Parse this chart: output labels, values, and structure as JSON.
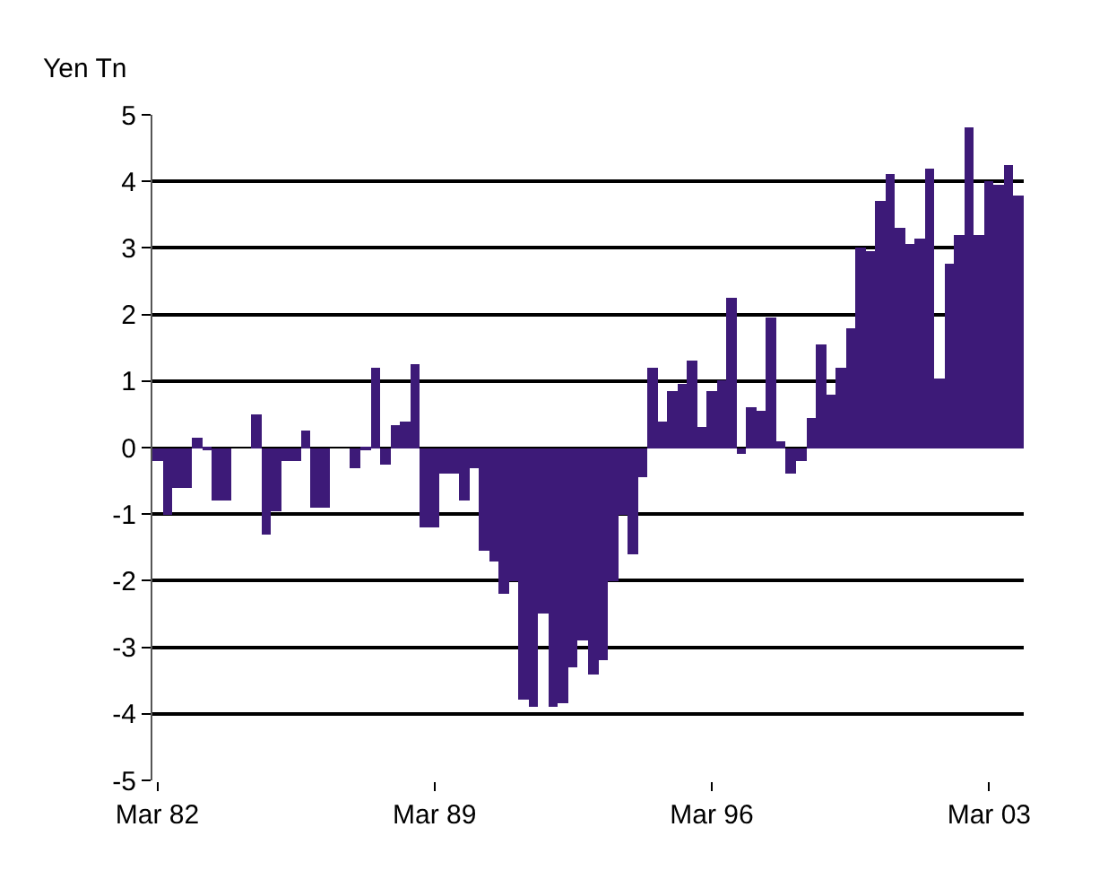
{
  "chart_data": {
    "type": "bar",
    "ylabel": "Yen Tn",
    "categories": [
      "Mar 82",
      null,
      null,
      null,
      null,
      null,
      null,
      null,
      null,
      null,
      null,
      null,
      null,
      null,
      null,
      null,
      null,
      null,
      null,
      null,
      null,
      null,
      null,
      null,
      null,
      null,
      null,
      null,
      "Mar 89",
      null,
      null,
      null,
      null,
      null,
      null,
      null,
      null,
      null,
      null,
      null,
      null,
      null,
      null,
      null,
      null,
      null,
      null,
      null,
      null,
      null,
      null,
      null,
      null,
      null,
      null,
      null,
      "Mar 96",
      null,
      null,
      null,
      null,
      null,
      null,
      null,
      null,
      null,
      null,
      null,
      null,
      null,
      null,
      null,
      null,
      null,
      null,
      null,
      null,
      null,
      null,
      null,
      null,
      null,
      null,
      null,
      "Mar 03",
      null,
      null,
      null
    ],
    "values": [
      -0.2,
      -1.0,
      -0.6,
      -0.6,
      0.15,
      -0.05,
      -0.8,
      -0.8,
      0,
      0,
      0.5,
      -1.3,
      -0.95,
      -0.2,
      -0.2,
      0.25,
      -0.9,
      -0.9,
      0,
      0,
      -0.3,
      -0.05,
      1.2,
      -0.25,
      0.35,
      0.4,
      1.25,
      -1.2,
      -1.2,
      -0.4,
      -0.4,
      -0.8,
      -0.3,
      -1.55,
      -1.7,
      -2.2,
      -2.0,
      -3.8,
      -3.9,
      -2.5,
      -3.9,
      -3.85,
      -3.3,
      -2.9,
      -3.4,
      -3.2,
      -2.0,
      -1.0,
      -1.6,
      -0.45,
      1.2,
      0.4,
      0.85,
      0.95,
      1.3,
      0.3,
      0.85,
      1.0,
      2.25,
      -0.1,
      0.6,
      0.55,
      1.95,
      0.1,
      -0.4,
      -0.2,
      0.45,
      1.55,
      0.8,
      1.2,
      1.8,
      3.0,
      2.95,
      3.7,
      4.1,
      3.3,
      3.05,
      3.15,
      4.2,
      1.05,
      2.75,
      3.2,
      4.8,
      3.2,
      4.0,
      3.95,
      4.25,
      3.8
    ],
    "color": "#3d1a78",
    "ylim": [
      -5,
      5
    ],
    "yticks": [
      -5,
      -4,
      -3,
      -2,
      -1,
      0,
      1,
      2,
      3,
      4,
      5
    ],
    "grid": "y"
  }
}
